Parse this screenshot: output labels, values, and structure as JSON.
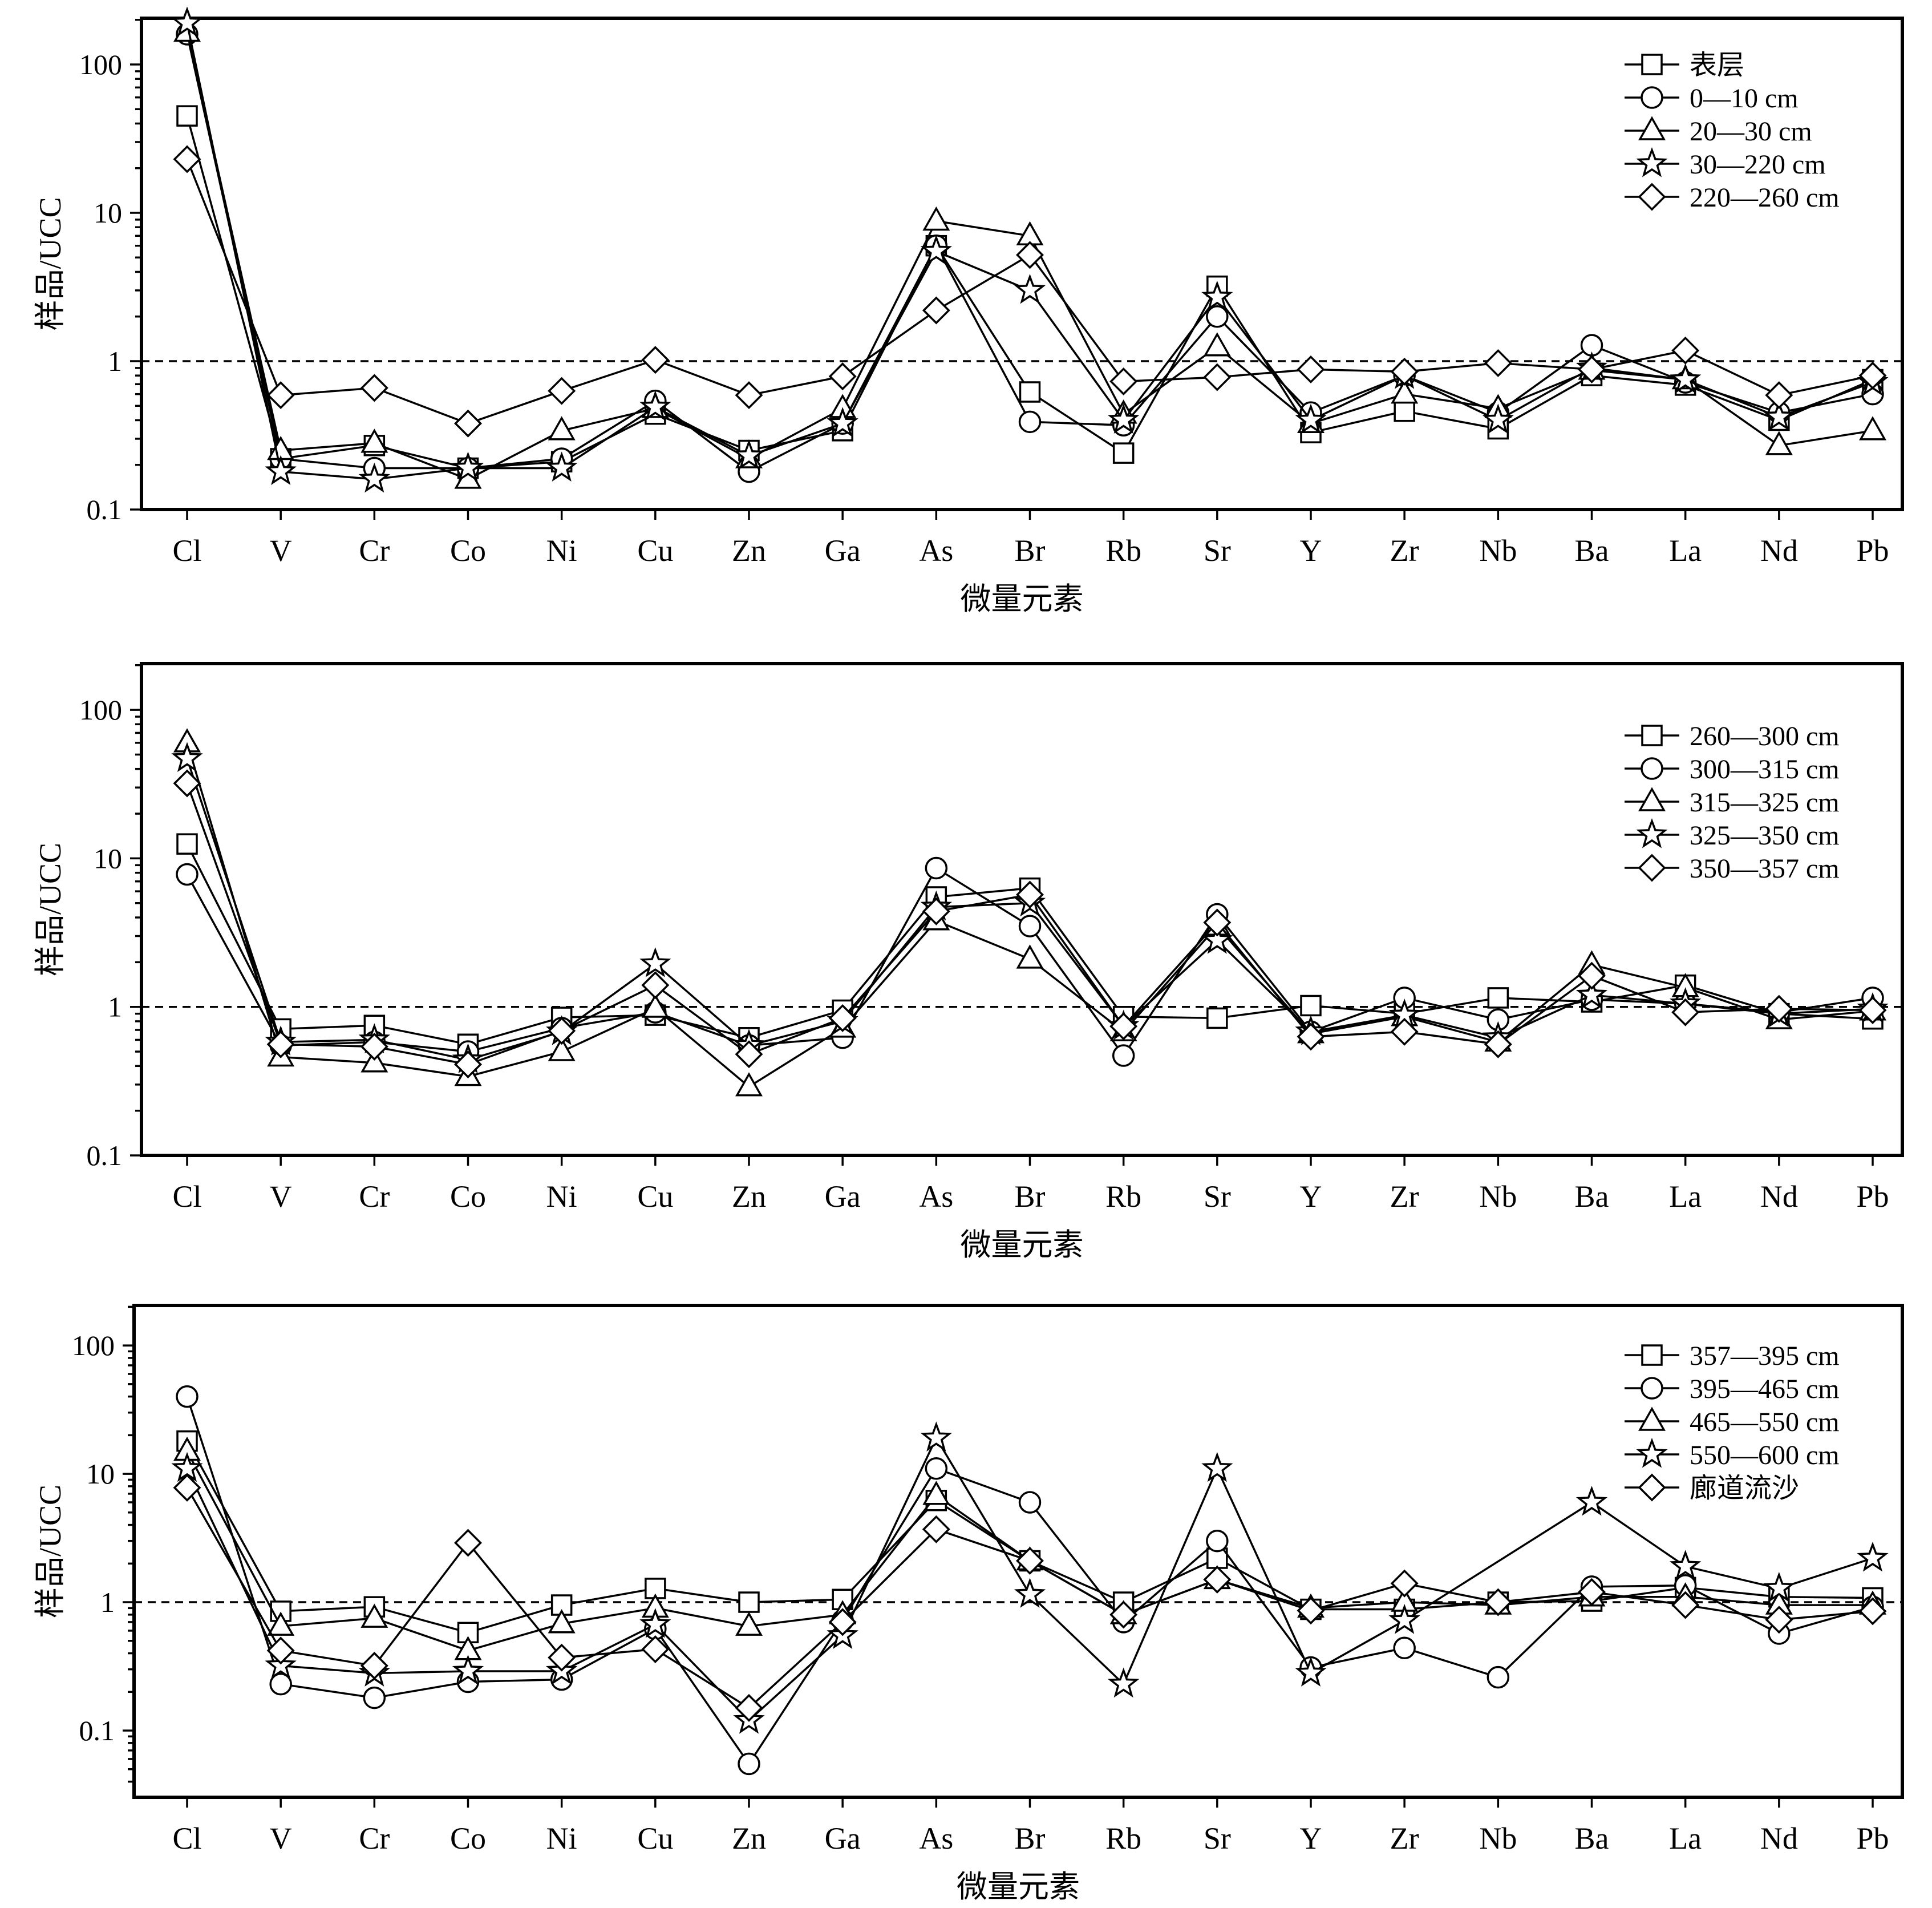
{
  "chart_data": [
    {
      "type": "line",
      "title": "",
      "xlabel": "微量元素",
      "ylabel": "样品/UCC",
      "y_scale": "log",
      "ylim": [
        0.1,
        200
      ],
      "y_ticks": [
        "0.1",
        "1",
        "10",
        "100"
      ],
      "reference_line": 1,
      "legend_position": "top-right",
      "categories": [
        "Cl",
        "V",
        "Cr",
        "Co",
        "Ni",
        "Cu",
        "Zn",
        "Ga",
        "As",
        "Br",
        "Rb",
        "Sr",
        "Y",
        "Zr",
        "Nb",
        "Ba",
        "La",
        "Nd",
        "Pb"
      ],
      "series": [
        {
          "name": "表层",
          "marker": "square",
          "values": [
            45,
            0.22,
            0.27,
            0.19,
            0.21,
            0.44,
            0.25,
            0.34,
            6.0,
            0.62,
            0.24,
            3.2,
            0.33,
            0.46,
            0.35,
            0.8,
            0.69,
            0.4,
            0.75
          ]
        },
        {
          "name": "0—10 cm",
          "marker": "circle",
          "values": [
            160,
            0.22,
            0.19,
            0.19,
            0.22,
            0.54,
            0.18,
            0.38,
            6.0,
            0.39,
            0.37,
            2.0,
            0.45,
            0.8,
            0.45,
            1.28,
            0.72,
            0.45,
            0.6
          ]
        },
        {
          "name": "20—30 cm",
          "marker": "triangle",
          "values": [
            165,
            0.25,
            0.28,
            0.16,
            0.34,
            0.48,
            0.22,
            0.48,
            8.8,
            7.0,
            0.44,
            1.25,
            0.38,
            0.6,
            0.48,
            0.87,
            0.75,
            0.27,
            0.34
          ]
        },
        {
          "name": "30—220 cm",
          "marker": "star",
          "values": [
            190,
            0.18,
            0.16,
            0.19,
            0.19,
            0.49,
            0.23,
            0.38,
            5.5,
            3.0,
            0.4,
            2.7,
            0.4,
            0.8,
            0.4,
            0.9,
            0.75,
            0.42,
            0.72
          ]
        },
        {
          "name": "220—260 cm",
          "marker": "diamond",
          "values": [
            23,
            0.59,
            0.66,
            0.38,
            0.63,
            1.02,
            0.59,
            0.79,
            2.2,
            5.2,
            0.73,
            0.78,
            0.88,
            0.85,
            0.97,
            0.88,
            1.18,
            0.59,
            0.8
          ]
        }
      ]
    },
    {
      "type": "line",
      "title": "",
      "xlabel": "微量元素",
      "ylabel": "样品/UCC",
      "y_scale": "log",
      "ylim": [
        0.1,
        200
      ],
      "y_ticks": [
        "0.1",
        "1",
        "10",
        "100"
      ],
      "reference_line": 1,
      "legend_position": "top-right",
      "categories": [
        "Cl",
        "V",
        "Cr",
        "Co",
        "Ni",
        "Cu",
        "Zn",
        "Ga",
        "As",
        "Br",
        "Rb",
        "Sr",
        "Y",
        "Zr",
        "Nb",
        "Ba",
        "La",
        "Nd",
        "Pb"
      ],
      "series": [
        {
          "name": "260—300 cm",
          "marker": "square",
          "values": [
            12.5,
            0.71,
            0.75,
            0.56,
            0.85,
            0.88,
            0.62,
            0.95,
            5.5,
            6.3,
            0.86,
            0.84,
            1.02,
            0.9,
            1.15,
            1.08,
            1.4,
            0.9,
            0.83
          ]
        },
        {
          "name": "300—315 cm",
          "marker": "circle",
          "values": [
            7.8,
            0.55,
            0.58,
            0.5,
            0.72,
            0.92,
            0.55,
            0.62,
            8.6,
            3.5,
            0.47,
            4.2,
            0.68,
            1.15,
            0.82,
            1.12,
            1.05,
            0.92,
            1.15
          ]
        },
        {
          "name": "315—325 cm",
          "marker": "triangle",
          "values": [
            60,
            0.46,
            0.42,
            0.34,
            0.5,
            0.98,
            0.29,
            0.72,
            3.8,
            2.1,
            0.68,
            3.5,
            0.66,
            0.86,
            0.58,
            1.92,
            1.35,
            0.82,
            0.94
          ]
        },
        {
          "name": "325—350 cm",
          "marker": "star",
          "values": [
            47,
            0.58,
            0.6,
            0.44,
            0.68,
            1.95,
            0.55,
            0.8,
            4.7,
            5.0,
            0.74,
            2.8,
            0.68,
            0.88,
            0.62,
            1.2,
            1.05,
            0.9,
            0.97
          ]
        },
        {
          "name": "350—357 cm",
          "marker": "diamond",
          "values": [
            32,
            0.56,
            0.54,
            0.41,
            0.69,
            1.4,
            0.48,
            0.84,
            4.4,
            5.7,
            0.74,
            3.7,
            0.63,
            0.68,
            0.56,
            1.62,
            0.92,
            0.97,
            0.95
          ]
        }
      ]
    },
    {
      "type": "line",
      "title": "",
      "xlabel": "微量元素",
      "ylabel": "样品/UCC",
      "y_scale": "log",
      "ylim": [
        0.03,
        200
      ],
      "y_ticks": [
        "0.1",
        "1",
        "10",
        "100"
      ],
      "reference_line": 1,
      "legend_position": "top-right",
      "categories": [
        "Cl",
        "V",
        "Cr",
        "Co",
        "Ni",
        "Cu",
        "Zn",
        "Ga",
        "As",
        "Br",
        "Rb",
        "Sr",
        "Y",
        "Zr",
        "Nb",
        "Ba",
        "La",
        "Nd",
        "Pb"
      ],
      "series": [
        {
          "name": "357—395 cm",
          "marker": "square",
          "values": [
            18,
            0.85,
            0.92,
            0.58,
            0.95,
            1.28,
            1.0,
            1.05,
            6.2,
            2.1,
            1.0,
            2.2,
            0.88,
            0.88,
            1.0,
            1.02,
            1.3,
            1.1,
            1.08
          ]
        },
        {
          "name": "395—465 cm",
          "marker": "circle",
          "values": [
            40,
            0.23,
            0.18,
            0.24,
            0.25,
            0.62,
            0.055,
            0.72,
            11,
            6.0,
            0.7,
            3.0,
            0.31,
            0.44,
            0.26,
            1.32,
            1.35,
            0.57,
            0.92
          ]
        },
        {
          "name": "465—550 cm",
          "marker": "triangle",
          "values": [
            15,
            0.65,
            0.75,
            0.42,
            0.68,
            0.9,
            0.65,
            0.8,
            6.8,
            2.1,
            0.8,
            1.5,
            0.9,
            1.0,
            0.95,
            1.1,
            1.1,
            0.95,
            0.95
          ]
        },
        {
          "name": "550—600 cm",
          "marker": "star",
          "values": [
            11,
            0.32,
            0.28,
            0.29,
            0.29,
            0.67,
            0.12,
            0.55,
            19,
            1.15,
            0.23,
            11,
            0.28,
            0.72,
            null,
            6.0,
            1.9,
            1.28,
            2.2
          ]
        },
        {
          "name": "廊道流沙",
          "marker": "diamond",
          "values": [
            7.8,
            0.42,
            0.32,
            2.9,
            0.37,
            0.43,
            0.15,
            0.7,
            3.7,
            2.1,
            0.8,
            1.5,
            0.86,
            1.4,
            1.0,
            1.2,
            0.95,
            0.73,
            0.85
          ]
        }
      ]
    }
  ]
}
